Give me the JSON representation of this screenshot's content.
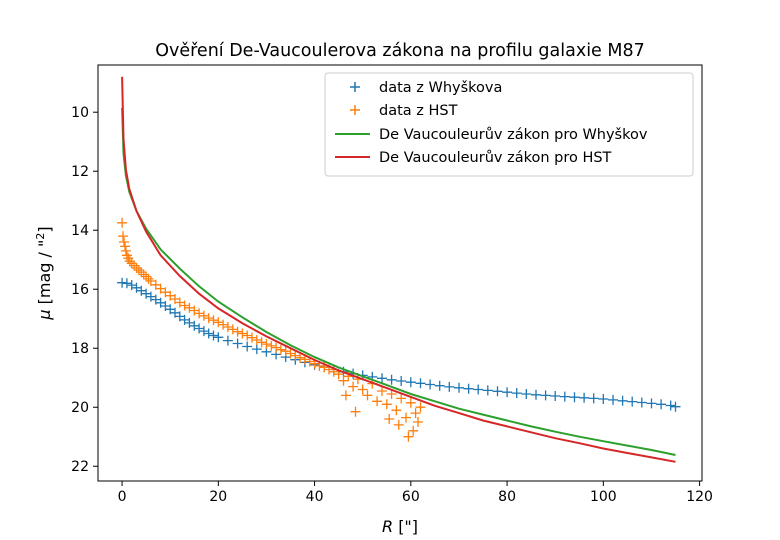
{
  "chart_data": {
    "type": "scatter",
    "title": "Ověření De-Vaucoulerova zákona na profilu galaxie M87",
    "xlabel_symbol": "R",
    "xlabel_unit": "[\"]",
    "ylabel_symbol": "μ",
    "ylabel_unit_pre": "[mag / \"",
    "ylabel_unit_sup": "2",
    "ylabel_unit_post": "]",
    "xlim": [
      -5,
      120.5
    ],
    "ylim": [
      22.5,
      8.4
    ],
    "y_inverted": true,
    "xticks": [
      "0",
      "20",
      "40",
      "60",
      "80",
      "100",
      "120"
    ],
    "yticks": [
      "10",
      "12",
      "14",
      "16",
      "18",
      "20",
      "22"
    ],
    "legend_position": "upper right",
    "grid": false,
    "series": [
      {
        "name": "data z Whyškova",
        "kind": "scatter",
        "marker": "+",
        "color": "#1f77b4",
        "points": [
          [
            0,
            15.78
          ],
          [
            1,
            15.8
          ],
          [
            2,
            15.86
          ],
          [
            3,
            15.95
          ],
          [
            4,
            16.05
          ],
          [
            5,
            16.15
          ],
          [
            6,
            16.25
          ],
          [
            7,
            16.35
          ],
          [
            8,
            16.46
          ],
          [
            9,
            16.57
          ],
          [
            10,
            16.68
          ],
          [
            11,
            16.8
          ],
          [
            12,
            16.92
          ],
          [
            13,
            17.04
          ],
          [
            14,
            17.14
          ],
          [
            15,
            17.24
          ],
          [
            16,
            17.33
          ],
          [
            17,
            17.42
          ],
          [
            18,
            17.5
          ],
          [
            19,
            17.57
          ],
          [
            20,
            17.63
          ],
          [
            22,
            17.74
          ],
          [
            24,
            17.84
          ],
          [
            26,
            17.94
          ],
          [
            28,
            18.03
          ],
          [
            30,
            18.12
          ],
          [
            32,
            18.21
          ],
          [
            34,
            18.3
          ],
          [
            36,
            18.39
          ],
          [
            38,
            18.48
          ],
          [
            40,
            18.56
          ],
          [
            42,
            18.64
          ],
          [
            44,
            18.72
          ],
          [
            46,
            18.8
          ],
          [
            48,
            18.86
          ],
          [
            50,
            18.92
          ],
          [
            52,
            18.97
          ],
          [
            54,
            19.02
          ],
          [
            56,
            19.07
          ],
          [
            58,
            19.11
          ],
          [
            60,
            19.15
          ],
          [
            62,
            19.19
          ],
          [
            64,
            19.23
          ],
          [
            66,
            19.27
          ],
          [
            68,
            19.31
          ],
          [
            70,
            19.34
          ],
          [
            72,
            19.37
          ],
          [
            74,
            19.4
          ],
          [
            76,
            19.43
          ],
          [
            78,
            19.46
          ],
          [
            80,
            19.49
          ],
          [
            82,
            19.52
          ],
          [
            84,
            19.55
          ],
          [
            86,
            19.58
          ],
          [
            88,
            19.6
          ],
          [
            90,
            19.62
          ],
          [
            92,
            19.64
          ],
          [
            94,
            19.66
          ],
          [
            96,
            19.68
          ],
          [
            98,
            19.7
          ],
          [
            100,
            19.72
          ],
          [
            102,
            19.75
          ],
          [
            104,
            19.78
          ],
          [
            106,
            19.81
          ],
          [
            108,
            19.84
          ],
          [
            110,
            19.87
          ],
          [
            112,
            19.9
          ],
          [
            114,
            19.94
          ],
          [
            115,
            19.98
          ]
        ]
      },
      {
        "name": "data z HST",
        "kind": "scatter",
        "marker": "+",
        "color": "#ff7f0e",
        "points": [
          [
            0,
            13.75
          ],
          [
            0.2,
            14.2
          ],
          [
            0.4,
            14.4
          ],
          [
            0.6,
            14.55
          ],
          [
            0.8,
            14.7
          ],
          [
            1,
            14.85
          ],
          [
            1.3,
            14.95
          ],
          [
            1.6,
            15.05
          ],
          [
            2,
            15.12
          ],
          [
            2.5,
            15.2
          ],
          [
            3,
            15.28
          ],
          [
            3.5,
            15.35
          ],
          [
            4,
            15.42
          ],
          [
            4.5,
            15.5
          ],
          [
            5,
            15.57
          ],
          [
            5.5,
            15.65
          ],
          [
            6,
            15.72
          ],
          [
            7,
            15.85
          ],
          [
            8,
            15.98
          ],
          [
            9,
            16.1
          ],
          [
            10,
            16.22
          ],
          [
            11,
            16.33
          ],
          [
            12,
            16.45
          ],
          [
            13,
            16.55
          ],
          [
            14,
            16.63
          ],
          [
            15,
            16.72
          ],
          [
            16,
            16.82
          ],
          [
            17,
            16.9
          ],
          [
            18,
            16.98
          ],
          [
            19,
            17.05
          ],
          [
            20,
            17.12
          ],
          [
            21,
            17.2
          ],
          [
            22,
            17.28
          ],
          [
            23,
            17.36
          ],
          [
            24,
            17.44
          ],
          [
            25,
            17.5
          ],
          [
            26,
            17.57
          ],
          [
            27,
            17.64
          ],
          [
            28,
            17.72
          ],
          [
            29,
            17.8
          ],
          [
            30,
            17.86
          ],
          [
            31,
            17.92
          ],
          [
            32,
            17.98
          ],
          [
            33,
            18.05
          ],
          [
            34,
            18.1
          ],
          [
            35,
            18.18
          ],
          [
            36,
            18.25
          ],
          [
            37,
            18.32
          ],
          [
            38,
            18.38
          ],
          [
            39,
            18.45
          ],
          [
            40,
            18.52
          ],
          [
            41,
            18.6
          ],
          [
            42,
            18.65
          ],
          [
            43,
            18.72
          ],
          [
            44,
            18.8
          ],
          [
            45,
            18.88
          ],
          [
            46,
            19.1
          ],
          [
            46.5,
            19.6
          ],
          [
            47,
            18.95
          ],
          [
            48,
            19.3
          ],
          [
            48.5,
            20.15
          ],
          [
            49,
            19.05
          ],
          [
            50,
            19.4
          ],
          [
            51,
            19.6
          ],
          [
            52,
            19.2
          ],
          [
            53,
            19.8
          ],
          [
            54,
            19.45
          ],
          [
            55,
            19.9
          ],
          [
            55.5,
            20.4
          ],
          [
            56,
            19.55
          ],
          [
            57,
            20.1
          ],
          [
            57.5,
            20.6
          ],
          [
            58,
            19.7
          ],
          [
            59,
            20.35
          ],
          [
            59.5,
            21.0
          ],
          [
            60,
            19.85
          ],
          [
            60.5,
            20.8
          ],
          [
            61,
            20.2
          ],
          [
            61.5,
            20.5
          ],
          [
            62,
            20.0
          ]
        ]
      },
      {
        "name": "De Vaucouleurův zákon pro Whyškov",
        "kind": "line",
        "color": "#2ca02c",
        "points": [
          [
            0,
            9.85
          ],
          [
            0.3,
            11.4
          ],
          [
            0.8,
            12.15
          ],
          [
            1.5,
            12.7
          ],
          [
            3,
            13.35
          ],
          [
            5,
            13.95
          ],
          [
            8,
            14.65
          ],
          [
            12,
            15.3
          ],
          [
            16,
            15.9
          ],
          [
            20,
            16.42
          ],
          [
            25,
            16.95
          ],
          [
            30,
            17.45
          ],
          [
            35,
            17.9
          ],
          [
            40,
            18.3
          ],
          [
            45,
            18.65
          ],
          [
            50,
            18.95
          ],
          [
            55,
            19.25
          ],
          [
            60,
            19.55
          ],
          [
            65,
            19.8
          ],
          [
            70,
            20.05
          ],
          [
            75,
            20.25
          ],
          [
            80,
            20.45
          ],
          [
            85,
            20.65
          ],
          [
            90,
            20.83
          ],
          [
            95,
            21.0
          ],
          [
            100,
            21.15
          ],
          [
            105,
            21.3
          ],
          [
            110,
            21.45
          ],
          [
            115,
            21.62
          ]
        ]
      },
      {
        "name": "De Vaucouleurův zákon pro HST",
        "kind": "line",
        "color": "#d62728",
        "points": [
          [
            0,
            8.8
          ],
          [
            0.3,
            10.9
          ],
          [
            0.8,
            11.95
          ],
          [
            1.5,
            12.6
          ],
          [
            3,
            13.35
          ],
          [
            5,
            14.05
          ],
          [
            8,
            14.85
          ],
          [
            12,
            15.55
          ],
          [
            16,
            16.15
          ],
          [
            20,
            16.65
          ],
          [
            25,
            17.15
          ],
          [
            30,
            17.6
          ],
          [
            35,
            18.0
          ],
          [
            40,
            18.4
          ],
          [
            45,
            18.75
          ],
          [
            50,
            19.05
          ],
          [
            55,
            19.35
          ],
          [
            60,
            19.65
          ],
          [
            65,
            19.95
          ],
          [
            70,
            20.2
          ],
          [
            75,
            20.45
          ],
          [
            80,
            20.65
          ],
          [
            85,
            20.85
          ],
          [
            90,
            21.05
          ],
          [
            95,
            21.22
          ],
          [
            100,
            21.4
          ],
          [
            105,
            21.55
          ],
          [
            110,
            21.7
          ],
          [
            115,
            21.85
          ]
        ]
      }
    ]
  }
}
